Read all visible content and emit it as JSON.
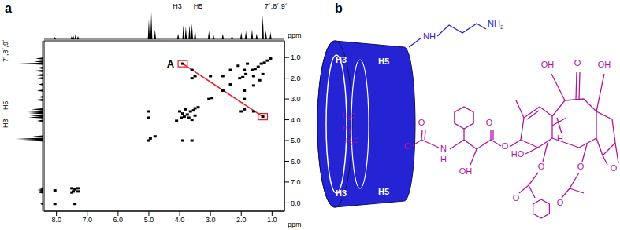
{
  "chart_data": {
    "type": "scatter",
    "title": "a",
    "x_label": "ppm",
    "y_label": "ppm",
    "xlim": [
      0.6,
      8.4
    ],
    "ylim": [
      0.2,
      8.4
    ],
    "xticks": [
      {
        "value": 8,
        "label": "8.0"
      },
      {
        "value": 7,
        "label": "7.0"
      },
      {
        "value": 6,
        "label": "6.0"
      },
      {
        "value": 5,
        "label": "5.0"
      },
      {
        "value": 4,
        "label": "4.0"
      },
      {
        "value": 3,
        "label": "3.0"
      },
      {
        "value": 2,
        "label": "2.0"
      },
      {
        "value": 1,
        "label": "1.0"
      }
    ],
    "yticks": [
      {
        "value": 1,
        "label": "1.0"
      },
      {
        "value": 2,
        "label": "2.0"
      },
      {
        "value": 3,
        "label": "3.0"
      },
      {
        "value": 4,
        "label": "4.0"
      },
      {
        "value": 5,
        "label": "5.0"
      },
      {
        "value": 6,
        "label": "6.0"
      },
      {
        "value": 7,
        "label": "7.0"
      },
      {
        "value": 8,
        "label": "8.0"
      }
    ],
    "color": "#000000",
    "marker": "square",
    "x": [
      8.05,
      7.5,
      7.45,
      7.4,
      7.3,
      5.0,
      4.95,
      4.8,
      4.1,
      3.95,
      3.85,
      3.75,
      3.65,
      3.55,
      3.5,
      3.4,
      3.05,
      2.95,
      2.6,
      2.35,
      2.05,
      1.95,
      1.85,
      1.65,
      1.55,
      1.45,
      1.35,
      1.25,
      1.15,
      1.05,
      7.4,
      8.05,
      7.3,
      7.5,
      5.0,
      5.0,
      3.9,
      3.6,
      4.0,
      3.6,
      3.8,
      3.5,
      3.9,
      3.7,
      3.6,
      3.5,
      3.6,
      2.0,
      1.9,
      1.6,
      2.6,
      1.9,
      1.9,
      1.6,
      1.8,
      1.3,
      2.1,
      1.4,
      3.9,
      1.3,
      2.35,
      1.6,
      3.0,
      1.9
    ],
    "values": [
      8.05,
      7.5,
      7.45,
      7.35,
      7.3,
      5.0,
      4.9,
      4.8,
      4.05,
      3.9,
      3.85,
      3.75,
      3.6,
      3.55,
      3.45,
      3.4,
      3.0,
      2.95,
      2.6,
      2.3,
      2.0,
      1.95,
      1.8,
      1.6,
      1.55,
      1.45,
      1.3,
      1.25,
      1.15,
      1.05,
      8.05,
      7.4,
      7.45,
      7.3,
      3.9,
      3.6,
      5.0,
      5.0,
      3.6,
      4.0,
      3.5,
      3.8,
      3.7,
      3.9,
      2.0,
      1.9,
      1.6,
      3.6,
      3.5,
      3.6,
      1.9,
      2.6,
      1.6,
      1.9,
      1.3,
      1.8,
      1.4,
      2.1,
      1.3,
      3.85,
      1.6,
      2.35,
      1.9,
      3.0
    ],
    "projection": {
      "ppm": [
        8.05,
        7.5,
        7.45,
        7.38,
        7.3,
        5.0,
        4.92,
        4.8,
        4.05,
        3.88,
        3.8,
        3.68,
        3.6,
        3.5,
        3.05,
        2.9,
        2.6,
        2.3,
        2.0,
        1.85,
        1.65,
        1.5,
        1.3,
        1.2,
        1.05
      ],
      "intensity": [
        0.08,
        0.15,
        0.12,
        0.18,
        0.12,
        0.7,
        0.95,
        0.35,
        0.2,
        0.5,
        0.45,
        0.5,
        0.55,
        0.4,
        0.3,
        0.15,
        0.2,
        0.15,
        0.25,
        0.3,
        0.35,
        0.2,
        0.85,
        0.3,
        0.25
      ]
    },
    "projection_labels": [
      {
        "text": "H3",
        "ppm": 3.88
      },
      {
        "text": "H5",
        "ppm": 3.6
      },
      {
        "text": "7´,8´,9´",
        "ppm": 1.3
      }
    ],
    "highlight": {
      "label": "A",
      "color": "#e8202a",
      "boxes": [
        {
          "x": [
            3.75,
            4.05
          ],
          "y": [
            1.15,
            1.45
          ]
        },
        {
          "x": [
            1.15,
            1.45
          ],
          "y": [
            3.7,
            4.0
          ]
        }
      ]
    }
  },
  "structure": {
    "label": "b",
    "host_labels": [
      "H3",
      "H5",
      "H3",
      "H5"
    ],
    "linker": [
      "NH",
      "NH2"
    ],
    "guest": [
      "H3C",
      "H3C",
      "H3C",
      "O",
      "O",
      "N",
      "H",
      "OH",
      "O",
      "O",
      "OH",
      "O",
      "OH",
      "H",
      "HO",
      "O",
      "O",
      "O",
      "O",
      "O"
    ]
  }
}
